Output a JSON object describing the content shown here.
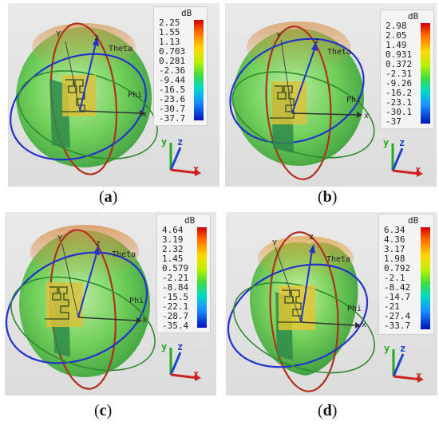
{
  "panels": [
    {
      "caption": "a",
      "legend": {
        "unit": "dB",
        "ticks": [
          "2.25",
          "1.55",
          "1.13",
          "0.703",
          "0.281",
          "-2.36",
          "-9.44",
          "-16.5",
          "-23.6",
          "-30.7",
          "-37.7"
        ]
      },
      "labels": {
        "y": "Y",
        "z": "z",
        "theta": "Theta",
        "phi": "Phi",
        "x": "x"
      },
      "triad": {
        "y": "y",
        "z": "z",
        "x": "x"
      }
    },
    {
      "caption": "b",
      "legend": {
        "unit": "dB",
        "ticks": [
          "2.98",
          "2.05",
          "1.49",
          "0.931",
          "0.372",
          "-2.31",
          "-9.26",
          "-16.2",
          "-23.1",
          "-30.1",
          "-37"
        ]
      },
      "labels": {
        "y": "Y",
        "z": "z",
        "theta": "Theta",
        "phi": "Phi",
        "x": "x"
      },
      "triad": {
        "y": "y",
        "z": "z",
        "x": "x"
      }
    },
    {
      "caption": "c",
      "legend": {
        "unit": "dB",
        "ticks": [
          "4.64",
          "3.19",
          "2.32",
          "1.45",
          "0.579",
          "-2.21",
          "-8.84",
          "-15.5",
          "-22.1",
          "-28.7",
          "-35.4"
        ]
      },
      "labels": {
        "y": "Y",
        "z": "z",
        "theta": "Theta",
        "phi": "Phi",
        "x": "x"
      },
      "triad": {
        "y": "y",
        "z": "z",
        "x": "x"
      }
    },
    {
      "caption": "d",
      "legend": {
        "unit": "dB",
        "ticks": [
          "6.34",
          "4.36",
          "3.17",
          "1.98",
          "0.792",
          "-2.1",
          "-8.42",
          "-14.7",
          "-21",
          "-27.4",
          "-33.7"
        ]
      },
      "labels": {
        "y": "Y",
        "z": "z",
        "theta": "Theta",
        "phi": "Phi",
        "x": "x"
      },
      "triad": {
        "y": "y",
        "z": "z",
        "x": "x"
      }
    }
  ],
  "colors": {
    "sphere": "#5fcf4a",
    "theta_ring": "#c0392b",
    "phi_ring": "#2e8b2e",
    "blue_ring": "#2233cc",
    "patch": "#e6c200",
    "axis_x": "#cc2222",
    "axis_y": "#22aa22",
    "axis_z": "#2244cc"
  }
}
